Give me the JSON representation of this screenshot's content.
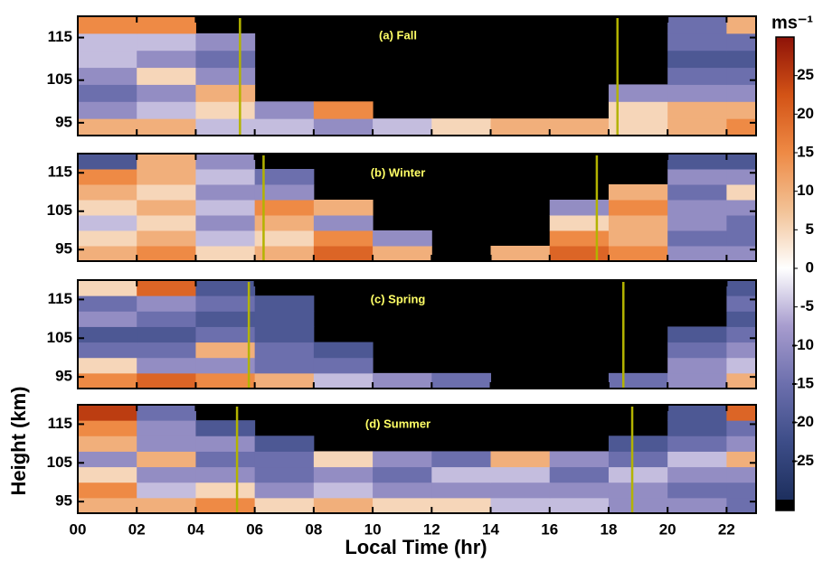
{
  "chart_data": {
    "type": "heatmap",
    "xlabel": "Local Time (hr)",
    "ylabel": "Height (km)",
    "xlim": [
      0,
      23
    ],
    "ylim": [
      92,
      120
    ],
    "xticks": [
      {
        "value": 0,
        "label": "00"
      },
      {
        "value": 2,
        "label": "02"
      },
      {
        "value": 4,
        "label": "04"
      },
      {
        "value": 6,
        "label": "06"
      },
      {
        "value": 8,
        "label": "08"
      },
      {
        "value": 10,
        "label": "10"
      },
      {
        "value": 12,
        "label": "12"
      },
      {
        "value": 14,
        "label": "14"
      },
      {
        "value": 16,
        "label": "16"
      },
      {
        "value": 18,
        "label": "18"
      },
      {
        "value": 20,
        "label": "20"
      },
      {
        "value": 22,
        "label": "22"
      }
    ],
    "yticks": [
      95,
      105,
      115
    ],
    "x": [
      0,
      2,
      4,
      6,
      8,
      10,
      12,
      14,
      16,
      18,
      20,
      22
    ],
    "heights": [
      92,
      96,
      100,
      104,
      108,
      112,
      116
    ],
    "colorbar_label": "ms⁻¹",
    "clim": [
      -30,
      30
    ],
    "cticks": [
      -25,
      -20,
      -15,
      -10,
      -5,
      0,
      5,
      10,
      15,
      20,
      25
    ],
    "colormap": [
      "#1d2f5e",
      "#3d4d88",
      "#6c6fad",
      "#a79cce",
      "#ffffff",
      "#f2c296",
      "#ee8a45",
      "#d35316",
      "#8e1208"
    ],
    "null_color": "#000000",
    "line_color": "#b3b300",
    "label_color": "#ffff66",
    "panels": [
      {
        "title": "(a) Fall",
        "sun_lines": [
          5.5,
          18.3
        ],
        "z": [
          [
            10,
            10,
            -5,
            -5,
            -10,
            -5,
            5,
            10,
            10,
            5,
            10,
            15
          ],
          [
            -10,
            -5,
            5,
            -10,
            15,
            null,
            null,
            null,
            null,
            5,
            10,
            10
          ],
          [
            -15,
            -10,
            10,
            null,
            null,
            null,
            null,
            null,
            null,
            -10,
            -10,
            -10
          ],
          [
            -10,
            5,
            -10,
            null,
            null,
            null,
            null,
            null,
            null,
            null,
            -15,
            -15
          ],
          [
            -5,
            -10,
            -15,
            null,
            null,
            null,
            null,
            null,
            null,
            null,
            -20,
            -20
          ],
          [
            -5,
            -5,
            -10,
            null,
            null,
            null,
            null,
            null,
            null,
            null,
            -15,
            -15
          ],
          [
            15,
            15,
            null,
            null,
            null,
            null,
            null,
            null,
            null,
            null,
            -15,
            10
          ]
        ]
      },
      {
        "title": "(b) Winter",
        "sun_lines": [
          6.3,
          17.6
        ],
        "z": [
          [
            10,
            15,
            5,
            10,
            20,
            10,
            null,
            10,
            20,
            15,
            -10,
            -10
          ],
          [
            5,
            10,
            -5,
            5,
            15,
            -10,
            null,
            null,
            15,
            10,
            -15,
            -15
          ],
          [
            -5,
            5,
            -10,
            10,
            -10,
            null,
            null,
            null,
            5,
            10,
            -10,
            -15
          ],
          [
            5,
            10,
            -5,
            15,
            10,
            null,
            null,
            null,
            -10,
            15,
            -10,
            -10
          ],
          [
            10,
            5,
            -10,
            -10,
            null,
            null,
            null,
            null,
            null,
            10,
            -15,
            5
          ],
          [
            15,
            10,
            -5,
            -15,
            null,
            null,
            null,
            null,
            null,
            null,
            -10,
            -10
          ],
          [
            -20,
            10,
            -10,
            null,
            null,
            null,
            null,
            null,
            null,
            null,
            -20,
            -20
          ]
        ]
      },
      {
        "title": "(c) Spring",
        "sun_lines": [
          5.8,
          18.5
        ],
        "z": [
          [
            15,
            20,
            15,
            10,
            -5,
            -10,
            -15,
            null,
            null,
            -15,
            -10,
            10
          ],
          [
            5,
            -10,
            -10,
            -15,
            -15,
            null,
            null,
            null,
            null,
            null,
            -10,
            -5
          ],
          [
            -15,
            -15,
            10,
            -15,
            -20,
            null,
            null,
            null,
            null,
            null,
            -15,
            -10
          ],
          [
            -20,
            -20,
            -15,
            -20,
            null,
            null,
            null,
            null,
            null,
            null,
            -20,
            -15
          ],
          [
            -10,
            -15,
            -20,
            -20,
            null,
            null,
            null,
            null,
            null,
            null,
            null,
            -20
          ],
          [
            -15,
            -10,
            -15,
            -20,
            null,
            null,
            null,
            null,
            null,
            null,
            null,
            -15
          ],
          [
            5,
            20,
            -20,
            null,
            null,
            null,
            null,
            null,
            null,
            null,
            null,
            -20
          ]
        ]
      },
      {
        "title": "(d) Summer",
        "sun_lines": [
          5.4,
          18.8
        ],
        "z": [
          [
            10,
            10,
            15,
            5,
            10,
            5,
            5,
            -5,
            -5,
            -10,
            -10,
            -15
          ],
          [
            15,
            -5,
            5,
            -10,
            -5,
            -10,
            -10,
            -10,
            -10,
            -10,
            -15,
            -15
          ],
          [
            5,
            -10,
            -10,
            -15,
            -10,
            -15,
            -5,
            -5,
            -15,
            -5,
            -10,
            -10
          ],
          [
            -10,
            10,
            -15,
            -15,
            5,
            -10,
            -15,
            10,
            -10,
            -15,
            -5,
            10
          ],
          [
            10,
            -10,
            -10,
            -20,
            null,
            null,
            null,
            null,
            null,
            -20,
            -15,
            -10
          ],
          [
            15,
            -10,
            -20,
            null,
            null,
            null,
            null,
            null,
            null,
            null,
            -20,
            -15
          ],
          [
            25,
            -15,
            null,
            null,
            null,
            null,
            null,
            null,
            null,
            null,
            -20,
            20
          ]
        ]
      }
    ]
  }
}
